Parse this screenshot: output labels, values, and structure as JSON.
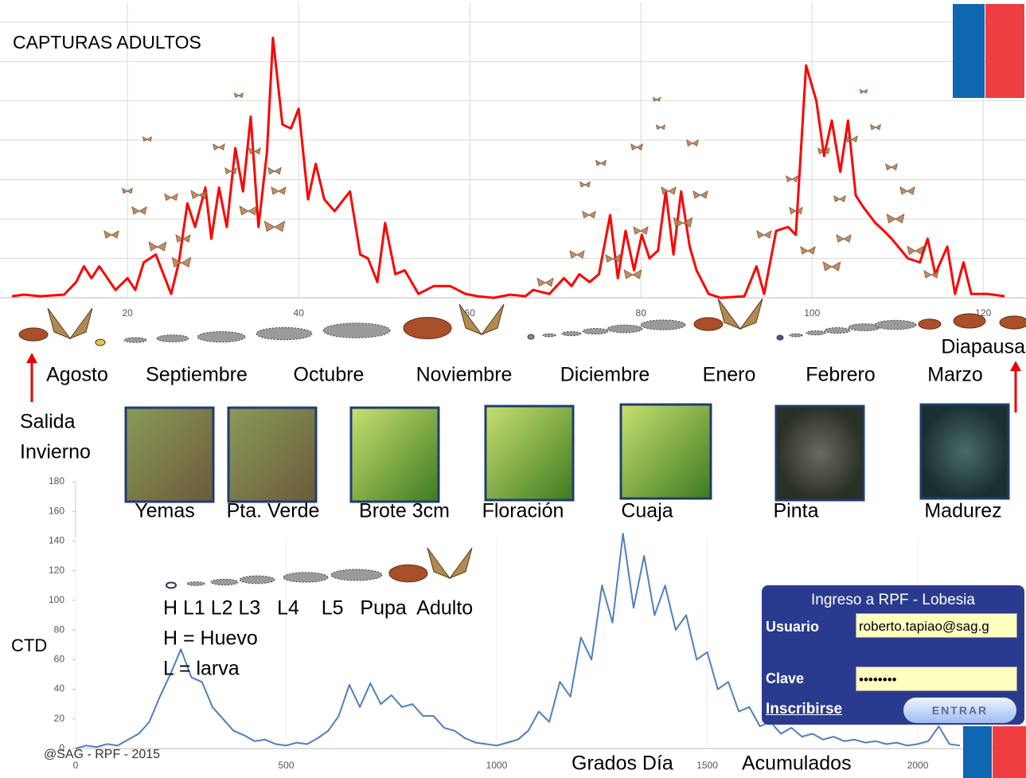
{
  "chart_data": [
    {
      "type": "line",
      "title": "CAPTURAS  ADULTOS",
      "color": "#ff0000",
      "grid": true,
      "x": [
        6.5,
        7.9,
        9.8,
        11.2,
        12.6,
        14.0,
        14.9,
        15.8,
        16.7,
        18.6,
        20,
        20.9,
        21.9,
        23.3,
        25.1,
        26.0,
        27.0,
        27.9,
        29.1,
        29.8,
        30.7,
        31.6,
        32.6,
        33.5,
        34.4,
        35.3,
        36.3,
        37.0,
        38.1,
        39.1,
        40,
        41.1,
        42.0,
        43.0,
        44.2,
        46.0,
        47.2,
        48.1,
        49.2,
        50.1,
        51.3,
        52.4,
        54.0,
        55.8,
        57.7,
        59.5,
        60.9,
        62.8,
        64.7,
        66.5,
        67.4,
        69.3,
        71.0,
        71.9,
        72.8,
        74.0,
        75.1,
        76.4,
        77.3,
        78.2,
        79.2,
        80.1,
        81.0,
        82.0,
        82.9,
        83.8,
        84.7,
        85.7,
        86.5,
        87.9,
        89.3,
        92.1,
        93.5,
        94.4,
        95.8,
        97.2,
        98.1,
        99.3,
        100.5,
        101.4,
        102.3,
        103.3,
        104.2,
        105.1,
        106.0,
        107.4,
        108.4,
        109.3,
        111.2,
        112.6,
        113.5,
        114.4,
        115.8,
        116.7,
        117.7,
        118.6,
        120.5,
        122.5
      ],
      "values": [
        0.04,
        0.08,
        0.04,
        0.06,
        0.08,
        0.4,
        0.8,
        0.5,
        0.8,
        0.2,
        0.5,
        0.2,
        0.9,
        1.1,
        0.1,
        0.9,
        2.4,
        1.8,
        2.8,
        1.5,
        2.8,
        1.8,
        3.8,
        2.7,
        4.6,
        1.8,
        3.7,
        6.6,
        4.4,
        4.3,
        4.8,
        2.5,
        3.4,
        2.5,
        2.2,
        2.7,
        1.1,
        1.0,
        0.4,
        1.9,
        0.6,
        0.7,
        0.1,
        0.3,
        0.3,
        0.1,
        0.04,
        0,
        0.08,
        0.04,
        0.2,
        0.1,
        0.5,
        0.3,
        0.6,
        0.4,
        0.6,
        2.1,
        0.5,
        1.7,
        0.7,
        1.6,
        1.0,
        1.2,
        2.7,
        1.1,
        2.7,
        1.3,
        0.7,
        0.1,
        0,
        0.04,
        0.8,
        0.1,
        1.7,
        1.8,
        1.6,
        5.9,
        5.0,
        3.6,
        4.5,
        3.2,
        4.5,
        2.6,
        2.3,
        1.9,
        1.7,
        1.5,
        1.0,
        0.9,
        1.5,
        0.6,
        1.3,
        0.1,
        0.9,
        0.1,
        0.1,
        0.04
      ],
      "xlim": [
        5.1,
        125
      ],
      "ylim": [
        0,
        7.5
      ],
      "xticks": [
        20,
        40,
        60,
        80,
        100,
        120
      ]
    },
    {
      "type": "line",
      "y_label": "CTD",
      "x_label": [
        "Grados Día",
        "Acumulados"
      ],
      "color": "#4f7fbf",
      "x": [
        0,
        25,
        50,
        75,
        100,
        125,
        150,
        175,
        200,
        225,
        250,
        275,
        300,
        325,
        350,
        375,
        400,
        425,
        450,
        475,
        500,
        525,
        550,
        575,
        600,
        625,
        650,
        675,
        700,
        725,
        750,
        775,
        800,
        825,
        850,
        875,
        900,
        925,
        950,
        975,
        1000,
        1025,
        1050,
        1075,
        1100,
        1125,
        1150,
        1175,
        1200,
        1225,
        1250,
        1275,
        1300,
        1325,
        1350,
        1375,
        1400,
        1425,
        1450,
        1475,
        1500,
        1525,
        1550,
        1575,
        1600,
        1625,
        1650,
        1675,
        1700,
        1725,
        1750,
        1775,
        1800,
        1825,
        1850,
        1875,
        1900,
        1925,
        1950,
        1975,
        2000,
        2025,
        2050,
        2075,
        2100
      ],
      "values": [
        0,
        2,
        1,
        3,
        2,
        6,
        10,
        18,
        35,
        50,
        67,
        48,
        45,
        28,
        20,
        12,
        9,
        5,
        6,
        3,
        2,
        4,
        3,
        7,
        12,
        22,
        43,
        28,
        44,
        30,
        36,
        28,
        30,
        22,
        22,
        14,
        12,
        7,
        4,
        3,
        2,
        4,
        6,
        12,
        25,
        18,
        45,
        35,
        75,
        60,
        110,
        85,
        145,
        95,
        130,
        90,
        110,
        80,
        90,
        60,
        65,
        40,
        45,
        25,
        28,
        15,
        18,
        10,
        14,
        8,
        10,
        6,
        8,
        5,
        6,
        4,
        5,
        3,
        4,
        2,
        3,
        5,
        15,
        3,
        2
      ],
      "xlim": [
        0,
        2257
      ],
      "ylim": [
        0,
        180
      ],
      "xticks": [
        0,
        500,
        1000,
        1500,
        2000
      ],
      "yticks": [
        0,
        20,
        40,
        60,
        80,
        100,
        120,
        140,
        160,
        180
      ]
    }
  ],
  "stages": {
    "months": [
      "Agosto",
      "Septiembre",
      "Octubre",
      "Noviembre",
      "Diciembre",
      "Enero",
      "Febrero",
      "Marzo"
    ],
    "start": [
      "Salida",
      "Invierno"
    ],
    "end": "Diapausa",
    "phenology": [
      "Yemas",
      "Pta. Verde",
      "Brote 3cm",
      "Floración",
      "Cuaja",
      "Pinta",
      "Madurez"
    ]
  },
  "legend": [
    "H L1 L2 L3   L4    L5   Pupa  Adulto",
    "H = Huevo",
    "L = larva"
  ],
  "credit": "@SAG - RPF - 2015",
  "login": {
    "title": "Ingreso a RPF - Lobesia",
    "user_label": "Usuario",
    "user_value": "roberto.tapiao@sag.g",
    "password_label": "Clave",
    "password_value": "••••••••",
    "register": "Inscribirse",
    "submit": "ENTRAR"
  }
}
